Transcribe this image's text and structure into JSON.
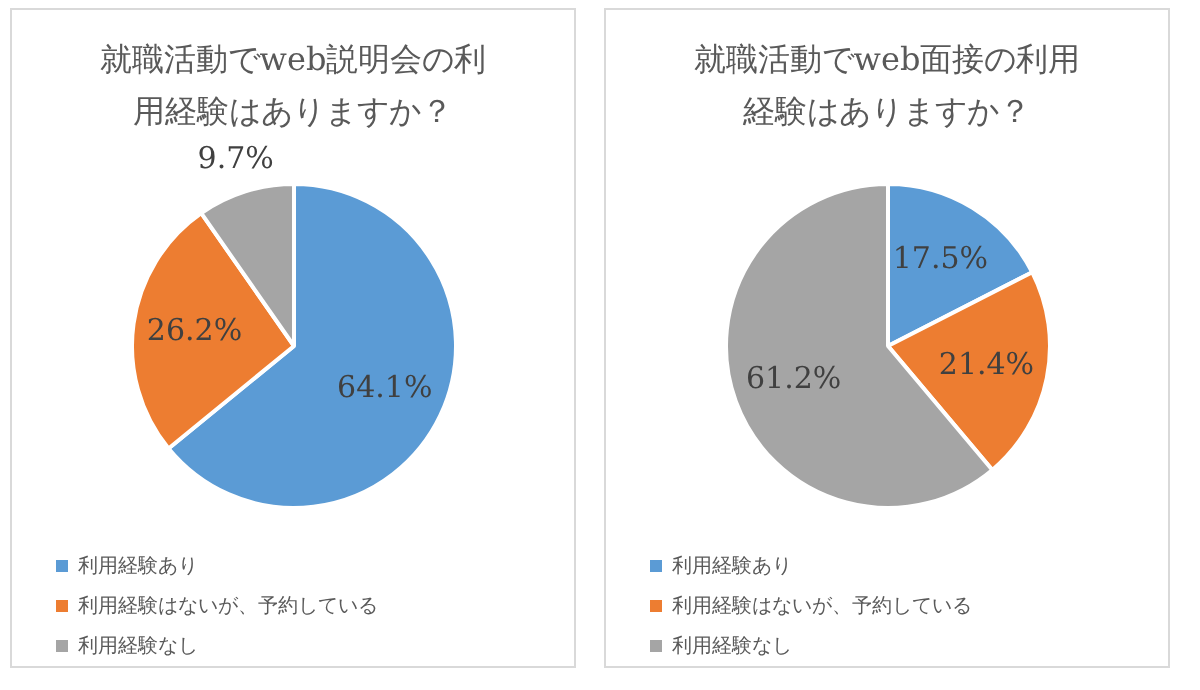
{
  "chart_data": [
    {
      "type": "pie",
      "title": "就職活動でweb説明会の利用経験はありますか？",
      "categories": [
        "利用経験あり",
        "利用経験はないが、予約している",
        "利用経験なし"
      ],
      "values": [
        64.1,
        26.2,
        9.7
      ],
      "colors": [
        "#5b9bd5",
        "#ed7d31",
        "#a5a5a5"
      ],
      "value_labels": [
        "64.1%",
        "26.2%",
        "9.7%"
      ],
      "legend": "bottom"
    },
    {
      "type": "pie",
      "title": "就職活動でweb面接の利用経験はありますか？",
      "categories": [
        "利用経験あり",
        "利用経験はないが、予約している",
        "利用経験なし"
      ],
      "values": [
        17.5,
        21.4,
        61.2
      ],
      "colors": [
        "#5b9bd5",
        "#ed7d31",
        "#a5a5a5"
      ],
      "value_labels": [
        "17.5%",
        "21.4%",
        "61.2%"
      ],
      "legend": "bottom"
    }
  ]
}
